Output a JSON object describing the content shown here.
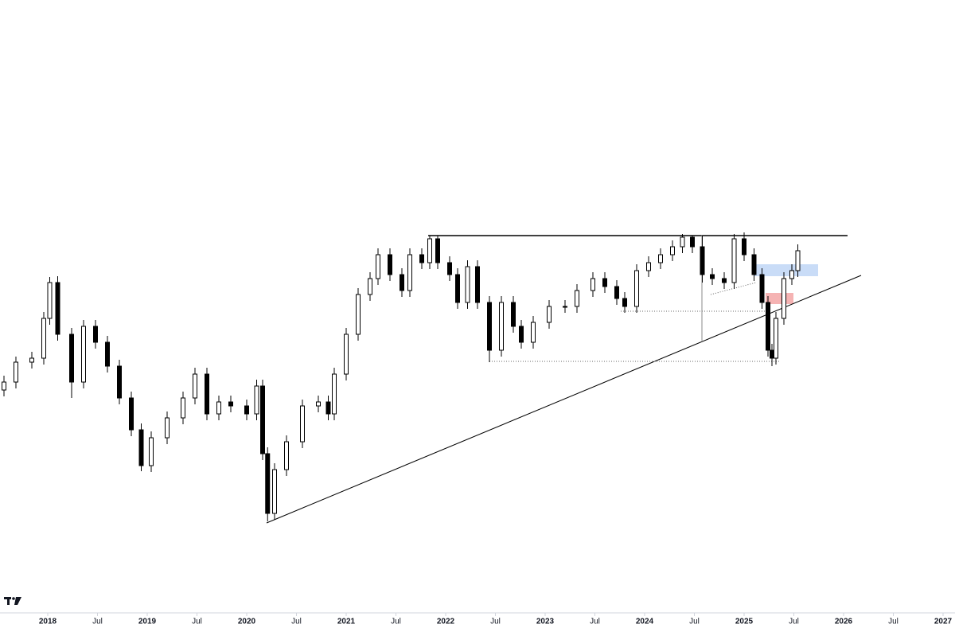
{
  "chart_data": {
    "type": "candlestick",
    "x": [
      2017.56,
      2017.68,
      2017.84,
      2017.96,
      2018.02,
      2018.1,
      2018.24,
      2018.36,
      2018.48,
      2018.6,
      2018.72,
      2018.84,
      2018.94,
      2019.04,
      2019.2,
      2019.36,
      2019.48,
      2019.6,
      2019.72,
      2019.84,
      2020.0,
      2020.1,
      2020.16,
      2020.21,
      2020.28,
      2020.4,
      2020.56,
      2020.72,
      2020.82,
      2020.88,
      2021.0,
      2021.12,
      2021.24,
      2021.32,
      2021.44,
      2021.56,
      2021.64,
      2021.76,
      2021.84,
      2021.92,
      2022.04,
      2022.12,
      2022.22,
      2022.32,
      2022.44,
      2022.56,
      2022.68,
      2022.76,
      2022.88,
      2023.04,
      2023.2,
      2023.32,
      2023.48,
      2023.6,
      2023.72,
      2023.8,
      2023.92,
      2024.04,
      2024.16,
      2024.28,
      2024.38,
      2024.48,
      2024.58,
      2024.68,
      2024.8,
      2024.9,
      2025.0,
      2025.1,
      2025.18,
      2025.24,
      2025.28,
      2025.32,
      2025.4,
      2025.48,
      2025.54
    ],
    "ohlc": [
      [
        280,
        298,
        272,
        290
      ],
      [
        290,
        322,
        282,
        315
      ],
      [
        315,
        328,
        307,
        320
      ],
      [
        320,
        378,
        312,
        370
      ],
      [
        370,
        422,
        362,
        415
      ],
      [
        415,
        423,
        342,
        350
      ],
      [
        350,
        358,
        270,
        290
      ],
      [
        290,
        368,
        282,
        360
      ],
      [
        360,
        368,
        332,
        340
      ],
      [
        340,
        348,
        302,
        310
      ],
      [
        310,
        318,
        262,
        270
      ],
      [
        270,
        278,
        222,
        230
      ],
      [
        230,
        238,
        178,
        185
      ],
      [
        185,
        228,
        177,
        220
      ],
      [
        220,
        253,
        212,
        245
      ],
      [
        245,
        278,
        237,
        270
      ],
      [
        270,
        308,
        262,
        300
      ],
      [
        300,
        308,
        242,
        250
      ],
      [
        250,
        273,
        242,
        265
      ],
      [
        265,
        273,
        252,
        260
      ],
      [
        260,
        268,
        242,
        250
      ],
      [
        250,
        293,
        242,
        285
      ],
      [
        285,
        293,
        192,
        200
      ],
      [
        200,
        208,
        115,
        125
      ],
      [
        125,
        188,
        117,
        180
      ],
      [
        180,
        223,
        172,
        215
      ],
      [
        215,
        268,
        207,
        260
      ],
      [
        260,
        273,
        252,
        265
      ],
      [
        265,
        273,
        242,
        250
      ],
      [
        250,
        308,
        242,
        300
      ],
      [
        300,
        358,
        292,
        350
      ],
      [
        350,
        408,
        342,
        400
      ],
      [
        400,
        428,
        392,
        420
      ],
      [
        420,
        458,
        412,
        450
      ],
      [
        450,
        458,
        417,
        425
      ],
      [
        425,
        433,
        397,
        405
      ],
      [
        405,
        458,
        397,
        450
      ],
      [
        450,
        458,
        432,
        440
      ],
      [
        440,
        474,
        432,
        470
      ],
      [
        470,
        474,
        432,
        440
      ],
      [
        440,
        448,
        417,
        425
      ],
      [
        425,
        433,
        382,
        390
      ],
      [
        390,
        443,
        382,
        435
      ],
      [
        435,
        443,
        382,
        390
      ],
      [
        390,
        398,
        315,
        330
      ],
      [
        330,
        398,
        322,
        390
      ],
      [
        390,
        398,
        352,
        360
      ],
      [
        360,
        368,
        332,
        340
      ],
      [
        340,
        373,
        332,
        365
      ],
      [
        365,
        393,
        357,
        385
      ],
      [
        385,
        393,
        377,
        385
      ],
      [
        385,
        413,
        377,
        405
      ],
      [
        405,
        428,
        397,
        420
      ],
      [
        420,
        428,
        402,
        410
      ],
      [
        410,
        418,
        387,
        395
      ],
      [
        395,
        403,
        377,
        385
      ],
      [
        385,
        438,
        377,
        430
      ],
      [
        430,
        448,
        422,
        440
      ],
      [
        440,
        458,
        432,
        450
      ],
      [
        450,
        468,
        442,
        460
      ],
      [
        460,
        476,
        452,
        472
      ],
      [
        472,
        474,
        452,
        460
      ],
      [
        460,
        474,
        415,
        425
      ],
      [
        425,
        433,
        412,
        420
      ],
      [
        420,
        428,
        407,
        415
      ],
      [
        415,
        476,
        407,
        470
      ],
      [
        470,
        478,
        442,
        450
      ],
      [
        450,
        458,
        417,
        425
      ],
      [
        425,
        433,
        382,
        390
      ],
      [
        390,
        398,
        322,
        330
      ],
      [
        330,
        338,
        310,
        320
      ],
      [
        320,
        378,
        312,
        370
      ],
      [
        370,
        428,
        362,
        420
      ],
      [
        420,
        438,
        412,
        430
      ],
      [
        430,
        463,
        422,
        455
      ]
    ],
    "xlim": [
      2017.52,
      2027.12
    ],
    "ylim": [
      0,
      770
    ],
    "xticks": [
      {
        "value": 2018,
        "label": "2018"
      },
      {
        "value": 2018.5,
        "label": "Jul"
      },
      {
        "value": 2019,
        "label": "2019"
      },
      {
        "value": 2019.5,
        "label": "Jul"
      },
      {
        "value": 2020,
        "label": "2020"
      },
      {
        "value": 2020.5,
        "label": "Jul"
      },
      {
        "value": 2021,
        "label": "2021"
      },
      {
        "value": 2021.5,
        "label": "Jul"
      },
      {
        "value": 2022,
        "label": "2022"
      },
      {
        "value": 2022.5,
        "label": "Jul"
      },
      {
        "value": 2023,
        "label": "2023"
      },
      {
        "value": 2023.5,
        "label": "Jul"
      },
      {
        "value": 2024,
        "label": "2024"
      },
      {
        "value": 2024.5,
        "label": "Jul"
      },
      {
        "value": 2025,
        "label": "2025"
      },
      {
        "value": 2025.5,
        "label": "Jul"
      },
      {
        "value": 2026,
        "label": "2026"
      },
      {
        "value": 2026.5,
        "label": "Jul"
      },
      {
        "value": 2027,
        "label": "2027"
      }
    ],
    "up_color": "#ffffff",
    "down_color": "#000000"
  }
}
